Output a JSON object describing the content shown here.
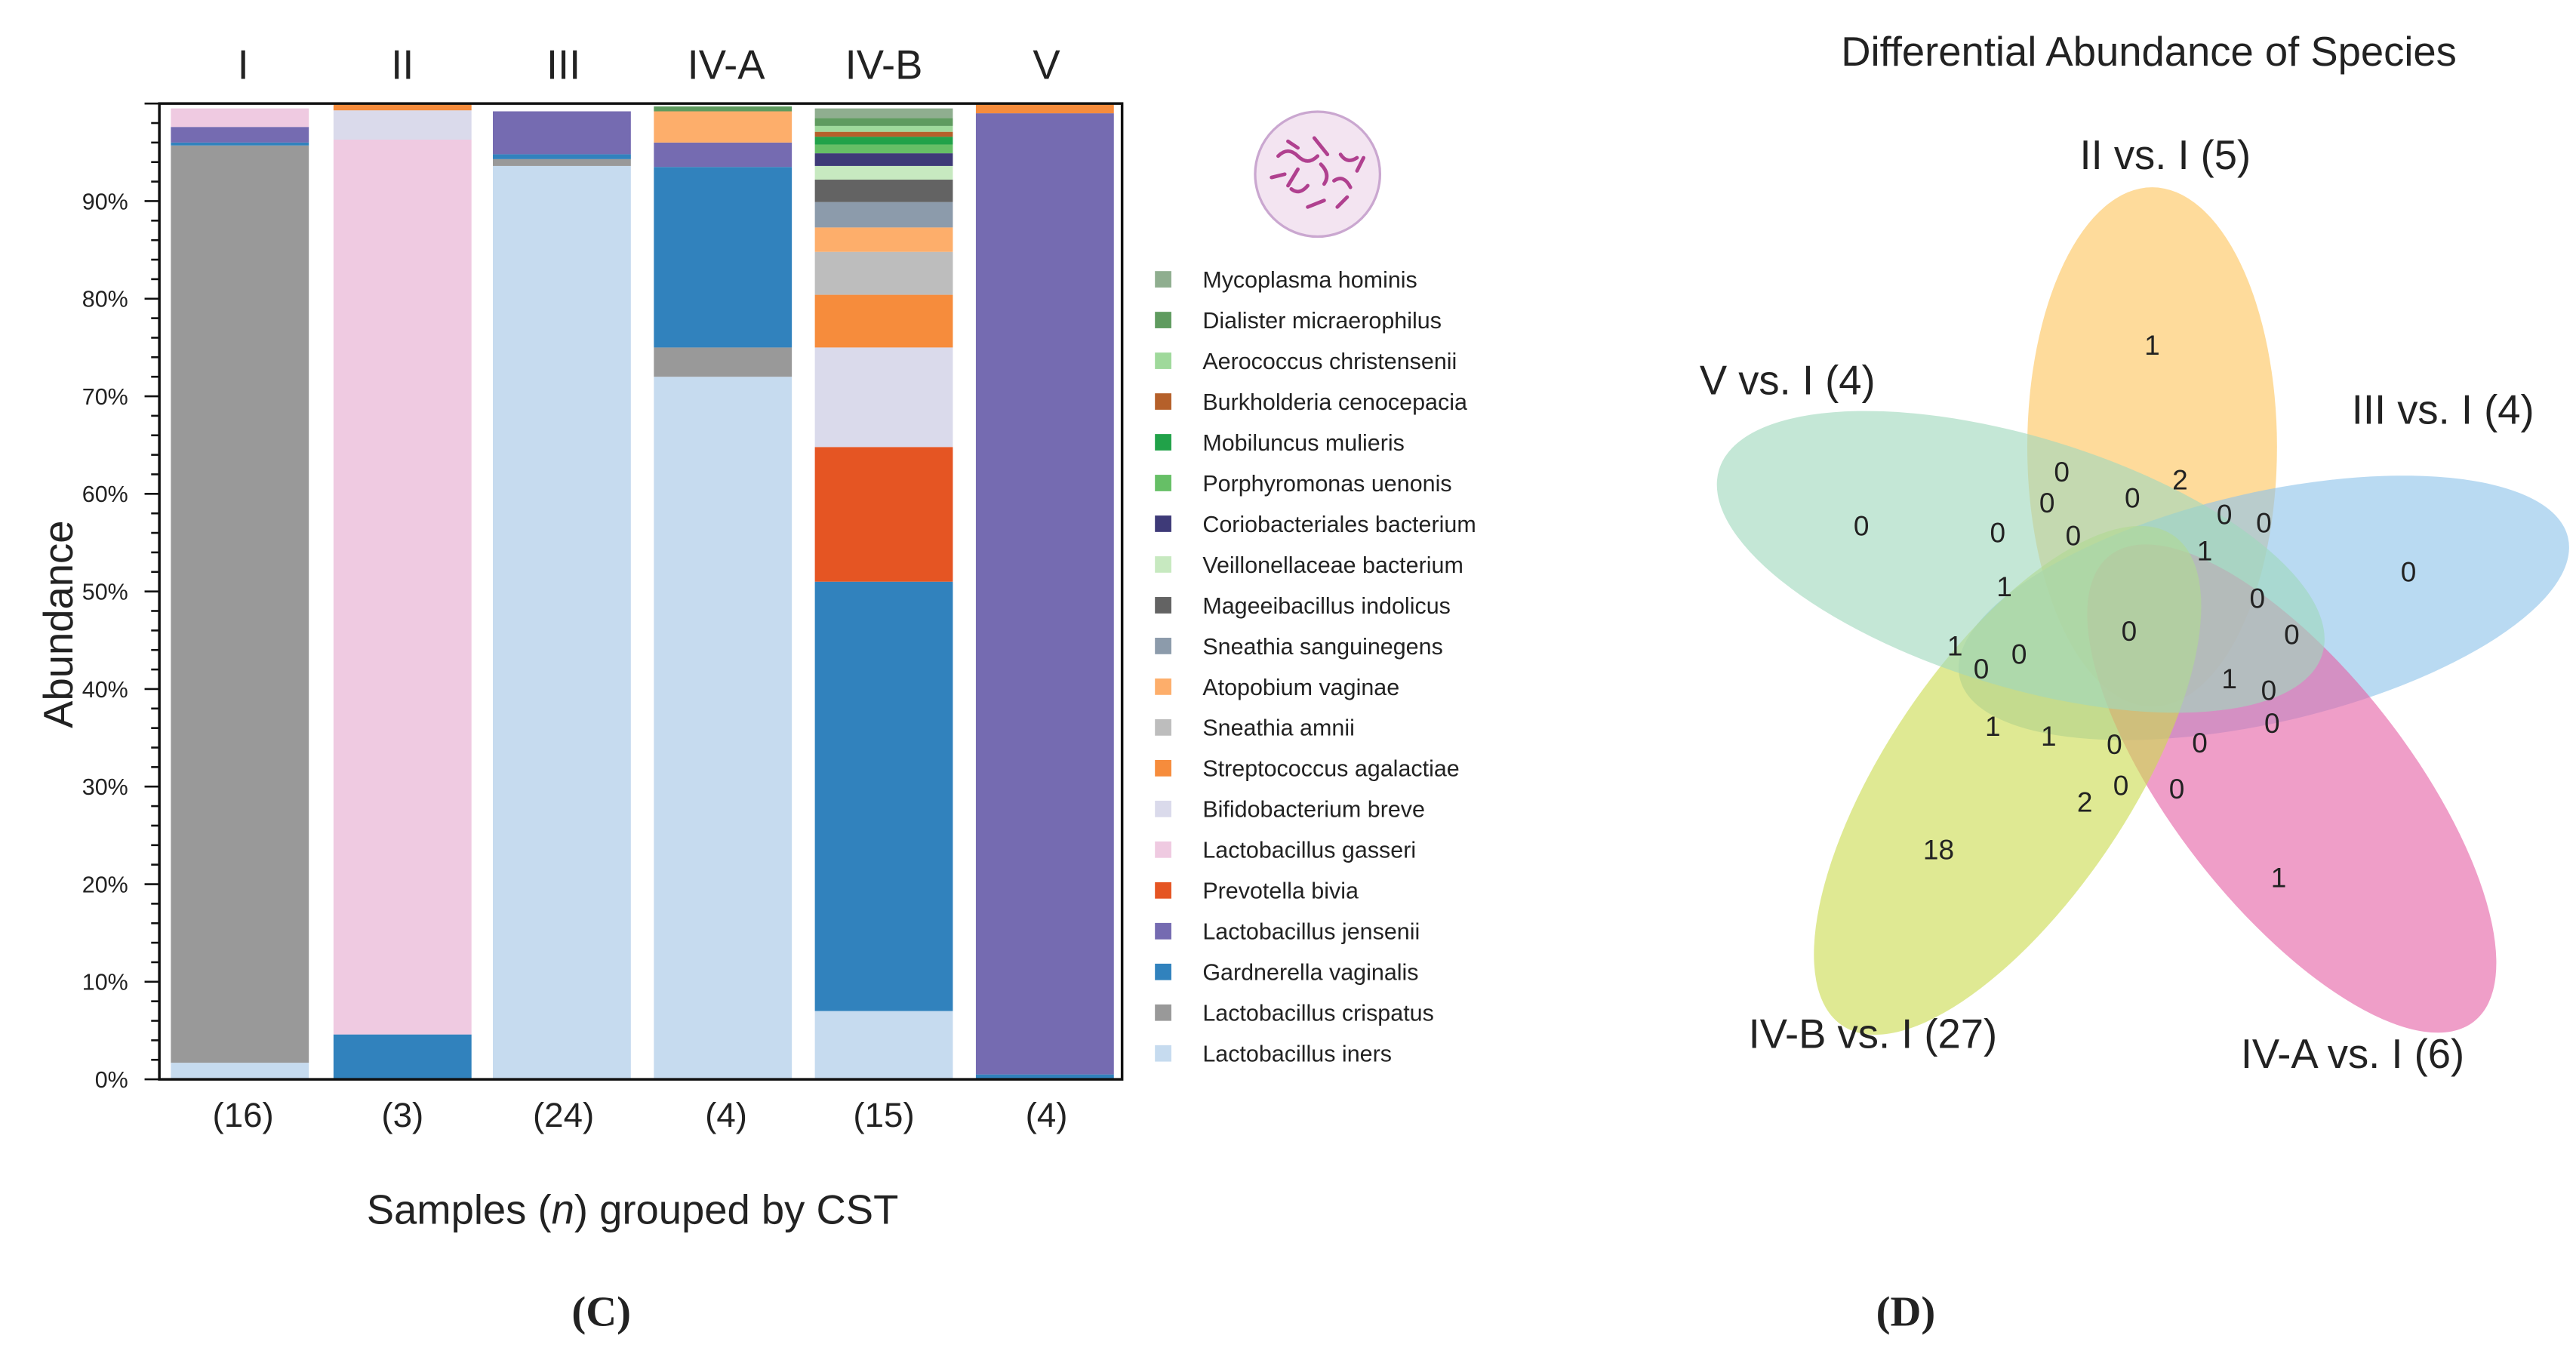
{
  "chart_data": [
    {
      "type": "bar",
      "stacked": true,
      "xlabel_parts": [
        "Samples (",
        "n",
        ") grouped by CST"
      ],
      "ylabel": "Abundance",
      "ylim": [
        0,
        100
      ],
      "y_tick_labels": [
        "0%",
        "10%",
        "20%",
        "30%",
        "40%",
        "50%",
        "60%",
        "70%",
        "80%",
        "90%"
      ],
      "categories": [
        "I",
        "II",
        "III",
        "IV-A",
        "IV-B",
        "V"
      ],
      "sample_counts": [
        "(16)",
        "(3)",
        "(24)",
        "(4)",
        "(15)",
        "(4)"
      ],
      "legend_position": "right",
      "panel_label": "(C)",
      "series": [
        {
          "name": "Mycoplasma hominis",
          "color": "#8fae8f",
          "values": [
            0,
            0,
            0,
            0,
            1.0,
            0
          ]
        },
        {
          "name": "Dialister micraerophilus",
          "color": "#5f9b5f",
          "values": [
            0,
            0,
            0,
            0.5,
            0.8,
            0
          ]
        },
        {
          "name": "Aerococcus christensenii",
          "color": "#9fd99b",
          "values": [
            0,
            0,
            0,
            0,
            0.6,
            0
          ]
        },
        {
          "name": "Burkholderia cenocepacia",
          "color": "#b5602a",
          "values": [
            0,
            0,
            0,
            0,
            0.5,
            0
          ]
        },
        {
          "name": "Mobiluncus mulieris",
          "color": "#21a249",
          "values": [
            0,
            0,
            0,
            0,
            0.8,
            0
          ]
        },
        {
          "name": "Porphyromonas uenonis",
          "color": "#66bf66",
          "values": [
            0,
            0,
            0,
            0,
            0.9,
            0
          ]
        },
        {
          "name": "Coriobacteriales bacterium",
          "color": "#3e3a78",
          "values": [
            0,
            0,
            0,
            0,
            1.3,
            0
          ]
        },
        {
          "name": "Veillonellaceae bacterium",
          "color": "#c7e9c0",
          "values": [
            0,
            0,
            0,
            0,
            1.4,
            0
          ]
        },
        {
          "name": "Mageeibacillus indolicus",
          "color": "#636363",
          "values": [
            0,
            0,
            0,
            0,
            2.3,
            0
          ]
        },
        {
          "name": "Sneathia sanguinegens",
          "color": "#8c9bab",
          "values": [
            0,
            0,
            0,
            0,
            2.6,
            0
          ]
        },
        {
          "name": "Atopobium vaginae",
          "color": "#fdae6b",
          "values": [
            0,
            0,
            0,
            3.2,
            2.5,
            0
          ]
        },
        {
          "name": "Sneathia amnii",
          "color": "#bdbdbd",
          "values": [
            0,
            0,
            0,
            0,
            4.4,
            0
          ]
        },
        {
          "name": "Streptococcus agalactiae",
          "color": "#f68c3c",
          "values": [
            0,
            0.7,
            0,
            0,
            5.4,
            1.0
          ]
        },
        {
          "name": "Bifidobacterium breve",
          "color": "#dadaeb",
          "values": [
            0,
            3.0,
            0,
            0,
            10.2,
            0
          ]
        },
        {
          "name": "Lactobacillus gasseri",
          "color": "#efcae1",
          "values": [
            1.9,
            91.7,
            0,
            0,
            0,
            0
          ]
        },
        {
          "name": "Prevotella bivia",
          "color": "#e55523",
          "values": [
            0,
            0,
            0,
            0,
            13.8,
            0
          ]
        },
        {
          "name": "Lactobacillus jensenii",
          "color": "#756bb1",
          "values": [
            1.6,
            0,
            4.4,
            2.5,
            0,
            98.5
          ]
        },
        {
          "name": "Gardnerella vaginalis",
          "color": "#3182bd",
          "values": [
            0.3,
            4.6,
            0.5,
            18.5,
            44.0,
            0.5
          ]
        },
        {
          "name": "Lactobacillus crispatus",
          "color": "#999999",
          "values": [
            94.0,
            0,
            0.7,
            3.0,
            0,
            0
          ]
        },
        {
          "name": "Lactobacillus iners",
          "color": "#c6dbef",
          "values": [
            1.7,
            0,
            93.6,
            72.0,
            7.0,
            0
          ]
        }
      ]
    },
    {
      "type": "venn",
      "title": "Differential Abundance of Species",
      "panel_label": "(D)",
      "sets": [
        {
          "label": "II vs. I (5)",
          "color": "#fdc55e"
        },
        {
          "label": "III vs. I (4)",
          "color": "#8ec3ea"
        },
        {
          "label": "IV-A vs. I (6)",
          "color": "#e562a6"
        },
        {
          "label": "IV-B vs. I (27)",
          "color": "#cbdc50"
        },
        {
          "label": "V vs. I (4)",
          "color": "#9fd8bd"
        }
      ],
      "region_counts": [
        "1",
        "0",
        "0",
        "18",
        "1",
        "0",
        "0",
        "0",
        "2",
        "0",
        "0",
        "0",
        "0",
        "0",
        "1",
        "1",
        "0",
        "0",
        "1",
        "0",
        "0",
        "1",
        "0",
        "0",
        "1",
        "1",
        "0",
        "0",
        "0",
        "0",
        "2"
      ]
    }
  ]
}
